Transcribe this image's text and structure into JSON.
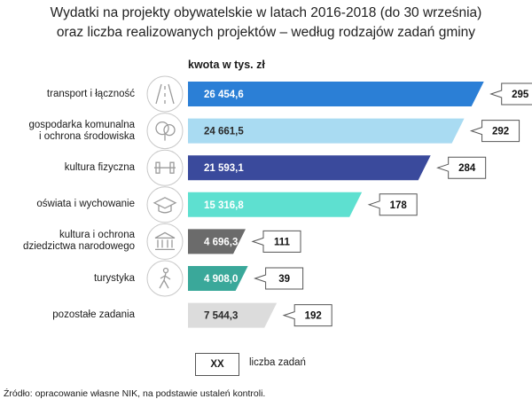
{
  "title_line1": "Wydatki na projekty obywatelskie w latach 2016-2018 (do 30 września)",
  "title_line2": "oraz liczba realizowanych projektów – według rodzajów zadań gminy",
  "unit_label": "kwota w tys. zł",
  "legend": {
    "box": "XX",
    "label": "liczba zadań"
  },
  "source": "Źródło: opracowanie własne NIK, na podstawie ustaleń kontroli.",
  "chart_data": {
    "type": "bar",
    "orientation": "horizontal",
    "title": "Wydatki na projekty obywatelskie w latach 2016-2018 (do 30 września) oraz liczba realizowanych projektów – według rodzajów zadań gminy",
    "xlabel": "kwota w tys. zł",
    "categories": [
      "transport i łączność",
      "gospodarka komunalna i ochrona środowiska",
      "kultura fizyczna",
      "oświata i wychowanie",
      "kultura i ochrona dziedzictwa narodowego",
      "turystyka",
      "pozostałe zadania"
    ],
    "category_lines": [
      [
        "transport i łączność"
      ],
      [
        "gospodarka komunalna",
        "i ochrona środowiska"
      ],
      [
        "kultura fizyczna"
      ],
      [
        "oświata i wychowanie"
      ],
      [
        "kultura i ochrona",
        "dziedzictwa narodowego"
      ],
      [
        "turystyka"
      ],
      [
        "pozostałe zadania"
      ]
    ],
    "values": [
      26454.6,
      24661.5,
      21593.1,
      15316.8,
      4696.3,
      4908.0,
      7544.3
    ],
    "value_labels": [
      "26 454,6",
      "24 661,5",
      "21 593,1",
      "15 316,8",
      "4 696,3",
      "4 908,0",
      "7 544,3"
    ],
    "counts": [
      295,
      292,
      284,
      178,
      111,
      39,
      192
    ],
    "bar_colors": [
      "#2b7fd6",
      "#a9dbf2",
      "#3a4a9c",
      "#5ee0d0",
      "#6b6b6b",
      "#3aa89a",
      "#dcdcdc"
    ],
    "icons": [
      "road-icon",
      "tree-icon",
      "dumbbell-icon",
      "graduation-cap-icon",
      "museum-icon",
      "hiker-icon",
      null
    ]
  }
}
